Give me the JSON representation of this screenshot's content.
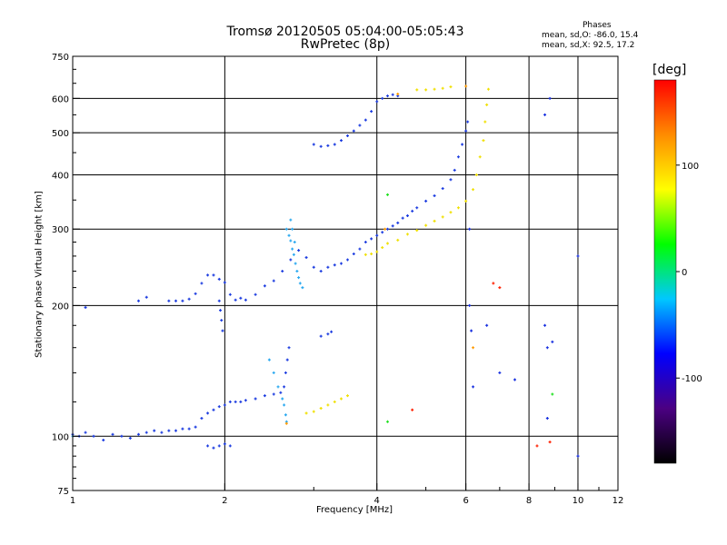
{
  "header": {
    "title_line1": "Tromsø 20120505 05:04:00-05:05:43",
    "title_line2": "RwPretec (8p)"
  },
  "phases": {
    "title": "Phases",
    "line1": "mean, sd,O: -86.0, 15.4",
    "line2": "mean, sd,X:  92.5, 17.2"
  },
  "colorbar": {
    "label": "[deg]",
    "ticks": [
      {
        "label": "100",
        "value": 100
      },
      {
        "label": "0",
        "value": 0
      },
      {
        "label": "-100",
        "value": -100
      }
    ],
    "range": [
      -180,
      180
    ],
    "colors": [
      "#000000",
      "#4b0082",
      "#0000ff",
      "#00c8ff",
      "#00ff00",
      "#ffff00",
      "#ff8c00",
      "#ff0000"
    ]
  },
  "chart_data": {
    "type": "scatter",
    "xlabel": "Frequency [MHz]",
    "ylabel": "Stationary phase Virtual Height [km]",
    "xscale": "log",
    "yscale": "log",
    "xlim": [
      1,
      12
    ],
    "ylim": [
      75,
      750
    ],
    "x_ticks": [
      1,
      2,
      4,
      6,
      8,
      10,
      12
    ],
    "y_ticks": [
      75,
      100,
      200,
      300,
      400,
      500,
      600,
      750
    ],
    "grid": true,
    "series": [
      {
        "mode": "O",
        "color": "#1c3ce0",
        "points": [
          [
            1.0,
            101
          ],
          [
            1.03,
            100
          ],
          [
            1.06,
            102
          ],
          [
            1.1,
            100
          ],
          [
            1.15,
            98
          ],
          [
            1.2,
            101
          ],
          [
            1.25,
            100
          ],
          [
            1.3,
            99
          ],
          [
            1.35,
            101
          ],
          [
            1.4,
            102
          ],
          [
            1.45,
            103
          ],
          [
            1.5,
            102
          ],
          [
            1.55,
            103
          ],
          [
            1.6,
            103
          ],
          [
            1.65,
            104
          ],
          [
            1.7,
            104
          ],
          [
            1.75,
            105
          ],
          [
            1.8,
            110
          ],
          [
            1.85,
            113
          ],
          [
            1.9,
            115
          ],
          [
            1.95,
            117
          ],
          [
            2.0,
            118
          ],
          [
            2.05,
            120
          ],
          [
            2.1,
            120
          ],
          [
            2.15,
            120
          ],
          [
            2.2,
            121
          ],
          [
            2.3,
            122
          ],
          [
            2.4,
            124
          ],
          [
            2.5,
            125
          ],
          [
            2.58,
            126
          ],
          [
            2.62,
            130
          ],
          [
            2.64,
            140
          ],
          [
            2.66,
            150
          ],
          [
            2.68,
            160
          ],
          [
            1.55,
            205
          ],
          [
            1.6,
            205
          ],
          [
            1.65,
            205
          ],
          [
            1.7,
            207
          ],
          [
            1.75,
            213
          ],
          [
            1.8,
            225
          ],
          [
            1.85,
            235
          ],
          [
            1.9,
            235
          ],
          [
            1.95,
            230
          ],
          [
            2.0,
            226
          ],
          [
            2.05,
            212
          ],
          [
            2.1,
            206
          ],
          [
            2.15,
            208
          ],
          [
            2.2,
            206
          ],
          [
            2.3,
            212
          ],
          [
            2.4,
            222
          ],
          [
            2.5,
            228
          ],
          [
            2.6,
            240
          ],
          [
            2.7,
            255
          ],
          [
            2.8,
            268
          ],
          [
            2.9,
            258
          ],
          [
            3.0,
            245
          ],
          [
            3.1,
            240
          ],
          [
            3.2,
            245
          ],
          [
            3.3,
            248
          ],
          [
            3.4,
            250
          ],
          [
            3.5,
            255
          ],
          [
            3.6,
            263
          ],
          [
            3.7,
            270
          ],
          [
            3.8,
            280
          ],
          [
            3.9,
            285
          ],
          [
            4.0,
            290
          ],
          [
            4.1,
            295
          ],
          [
            4.2,
            300
          ],
          [
            4.3,
            305
          ],
          [
            4.4,
            310
          ],
          [
            4.5,
            318
          ],
          [
            4.6,
            322
          ],
          [
            4.7,
            330
          ],
          [
            4.8,
            336
          ],
          [
            5.0,
            348
          ],
          [
            5.2,
            358
          ],
          [
            5.4,
            372
          ],
          [
            5.6,
            390
          ],
          [
            5.7,
            410
          ],
          [
            5.8,
            440
          ],
          [
            5.9,
            470
          ],
          [
            6.0,
            505
          ],
          [
            6.05,
            530
          ],
          [
            3.0,
            470
          ],
          [
            3.1,
            465
          ],
          [
            3.2,
            467
          ],
          [
            3.3,
            470
          ],
          [
            3.4,
            480
          ],
          [
            3.5,
            492
          ],
          [
            3.6,
            505
          ],
          [
            3.7,
            520
          ],
          [
            3.8,
            535
          ],
          [
            3.9,
            560
          ],
          [
            4.0,
            590
          ],
          [
            4.1,
            600
          ],
          [
            4.2,
            608
          ],
          [
            4.3,
            612
          ],
          [
            4.4,
            608
          ],
          [
            1.85,
            95
          ],
          [
            1.9,
            94
          ],
          [
            1.95,
            95
          ],
          [
            2.0,
            96
          ],
          [
            2.05,
            95
          ],
          [
            1.95,
            205
          ],
          [
            1.96,
            195
          ],
          [
            1.97,
            185
          ],
          [
            1.98,
            175
          ],
          [
            3.1,
            170
          ],
          [
            3.2,
            172
          ],
          [
            3.25,
            174
          ],
          [
            1.06,
            198
          ],
          [
            1.4,
            209
          ],
          [
            1.35,
            205
          ]
        ]
      },
      {
        "mode": "O-cyan",
        "color": "#28a8f0",
        "points": [
          [
            2.65,
            300
          ],
          [
            2.68,
            290
          ],
          [
            2.7,
            282
          ],
          [
            2.72,
            270
          ],
          [
            2.74,
            262
          ],
          [
            2.76,
            250
          ],
          [
            2.78,
            240
          ],
          [
            2.8,
            232
          ],
          [
            2.82,
            225
          ],
          [
            2.85,
            220
          ],
          [
            2.7,
            315
          ],
          [
            2.72,
            300
          ],
          [
            2.75,
            280
          ],
          [
            2.45,
            150
          ],
          [
            2.5,
            140
          ],
          [
            2.55,
            130
          ],
          [
            2.6,
            122
          ],
          [
            2.62,
            118
          ],
          [
            2.64,
            112
          ],
          [
            2.65,
            108
          ],
          [
            1.0,
            100
          ]
        ]
      },
      {
        "mode": "X",
        "color": "#f0e000",
        "points": [
          [
            2.9,
            113
          ],
          [
            3.0,
            114
          ],
          [
            3.1,
            116
          ],
          [
            3.2,
            118
          ],
          [
            3.3,
            120
          ],
          [
            3.4,
            122
          ],
          [
            3.5,
            124
          ],
          [
            3.8,
            262
          ],
          [
            3.9,
            263
          ],
          [
            4.0,
            266
          ],
          [
            4.1,
            272
          ],
          [
            4.2,
            278
          ],
          [
            4.4,
            283
          ],
          [
            4.6,
            292
          ],
          [
            4.8,
            298
          ],
          [
            5.0,
            306
          ],
          [
            5.2,
            313
          ],
          [
            5.4,
            320
          ],
          [
            5.6,
            328
          ],
          [
            5.8,
            336
          ],
          [
            6.0,
            348
          ],
          [
            6.2,
            370
          ],
          [
            6.3,
            400
          ],
          [
            6.4,
            440
          ],
          [
            6.5,
            480
          ],
          [
            6.55,
            530
          ],
          [
            6.6,
            580
          ],
          [
            6.65,
            630
          ],
          [
            4.8,
            628
          ],
          [
            5.0,
            628
          ],
          [
            5.2,
            630
          ],
          [
            5.4,
            633
          ],
          [
            5.6,
            638
          ]
        ]
      },
      {
        "mode": "X-orange",
        "color": "#ff9a00",
        "points": [
          [
            2.65,
            107
          ],
          [
            4.4,
            614
          ],
          [
            4.15,
            300
          ],
          [
            6.0,
            640
          ],
          [
            6.2,
            160
          ]
        ]
      },
      {
        "mode": "stray",
        "color": "#1830e0",
        "points": [
          [
            6.1,
            300
          ],
          [
            6.2,
            130
          ],
          [
            6.1,
            200
          ],
          [
            6.15,
            175
          ],
          [
            6.6,
            180
          ],
          [
            7.0,
            140
          ],
          [
            8.6,
            180
          ],
          [
            8.7,
            160
          ],
          [
            8.9,
            165
          ],
          [
            8.8,
            600
          ],
          [
            8.6,
            550
          ],
          [
            10.0,
            260
          ],
          [
            10.0,
            90
          ],
          [
            8.7,
            110
          ],
          [
            7.5,
            135
          ]
        ]
      },
      {
        "mode": "stray-warm",
        "color": "#ff2000",
        "points": [
          [
            4.7,
            115
          ],
          [
            8.3,
            95
          ],
          [
            8.8,
            97
          ],
          [
            6.8,
            225
          ],
          [
            7.0,
            220
          ]
        ]
      },
      {
        "mode": "stray-green",
        "color": "#20e020",
        "points": [
          [
            4.2,
            360
          ],
          [
            8.9,
            125
          ],
          [
            4.2,
            108
          ]
        ]
      }
    ]
  }
}
